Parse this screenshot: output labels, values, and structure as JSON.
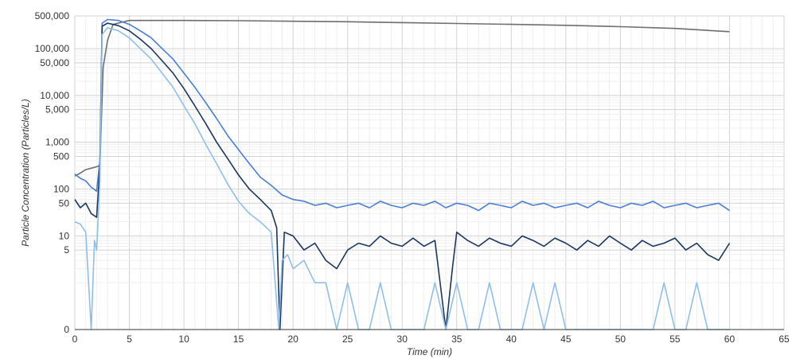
{
  "chart_data": {
    "type": "line",
    "xlabel": "Time (min)",
    "ylabel": "Particle Concentration (Particles/L)",
    "xlim": [
      0,
      65
    ],
    "x_ticks": [
      0,
      5,
      10,
      15,
      20,
      25,
      30,
      35,
      40,
      45,
      50,
      55,
      60,
      65
    ],
    "y_scale": "symlog",
    "y_ticks": [
      0,
      5,
      10,
      50,
      100,
      500,
      1000,
      5000,
      10000,
      50000,
      100000,
      500000
    ],
    "y_tick_labels": [
      "0",
      "5",
      "10",
      "50",
      "100",
      "500",
      "1,000",
      "5,000",
      "10,000",
      "50,000",
      "100,000",
      "500,000"
    ],
    "ylim": [
      0,
      500000
    ],
    "grid": true,
    "legend": "none",
    "series": [
      {
        "color": "#6e6e6e",
        "points": [
          [
            0,
            190
          ],
          [
            0.5,
            220
          ],
          [
            1,
            260
          ],
          [
            1.5,
            280
          ],
          [
            2,
            300
          ],
          [
            2.3,
            320
          ],
          [
            2.6,
            40000
          ],
          [
            3,
            150000
          ],
          [
            3.5,
            330000
          ],
          [
            5,
            400000
          ],
          [
            10,
            400000
          ],
          [
            15,
            395000
          ],
          [
            20,
            385000
          ],
          [
            25,
            375000
          ],
          [
            30,
            360000
          ],
          [
            35,
            345000
          ],
          [
            40,
            330000
          ],
          [
            45,
            315000
          ],
          [
            50,
            295000
          ],
          [
            55,
            270000
          ],
          [
            60,
            230000
          ]
        ]
      },
      {
        "color": "#4a7fd4",
        "points": [
          [
            0,
            210
          ],
          [
            0.5,
            170
          ],
          [
            1,
            150
          ],
          [
            1.5,
            110
          ],
          [
            2,
            90
          ],
          [
            2.3,
            400
          ],
          [
            2.5,
            350000
          ],
          [
            3,
            420000
          ],
          [
            4,
            400000
          ],
          [
            5,
            330000
          ],
          [
            6,
            240000
          ],
          [
            7,
            170000
          ],
          [
            8,
            100000
          ],
          [
            9,
            60000
          ],
          [
            10,
            30000
          ],
          [
            11,
            15000
          ],
          [
            12,
            7000
          ],
          [
            13,
            3200
          ],
          [
            14,
            1400
          ],
          [
            15,
            700
          ],
          [
            16,
            350
          ],
          [
            17,
            180
          ],
          [
            18,
            120
          ],
          [
            19,
            75
          ],
          [
            20,
            60
          ],
          [
            21,
            55
          ],
          [
            22,
            45
          ],
          [
            23,
            50
          ],
          [
            24,
            40
          ],
          [
            25,
            45
          ],
          [
            26,
            50
          ],
          [
            27,
            40
          ],
          [
            28,
            55
          ],
          [
            29,
            45
          ],
          [
            30,
            40
          ],
          [
            31,
            50
          ],
          [
            32,
            45
          ],
          [
            33,
            55
          ],
          [
            34,
            40
          ],
          [
            35,
            50
          ],
          [
            36,
            45
          ],
          [
            37,
            35
          ],
          [
            38,
            50
          ],
          [
            39,
            45
          ],
          [
            40,
            40
          ],
          [
            41,
            55
          ],
          [
            42,
            45
          ],
          [
            43,
            50
          ],
          [
            44,
            40
          ],
          [
            45,
            45
          ],
          [
            46,
            50
          ],
          [
            47,
            40
          ],
          [
            48,
            55
          ],
          [
            49,
            45
          ],
          [
            50,
            40
          ],
          [
            51,
            50
          ],
          [
            52,
            45
          ],
          [
            53,
            55
          ],
          [
            54,
            40
          ],
          [
            55,
            45
          ],
          [
            56,
            50
          ],
          [
            57,
            40
          ],
          [
            58,
            45
          ],
          [
            59,
            50
          ],
          [
            60,
            35
          ]
        ]
      },
      {
        "color": "#1c355e",
        "points": [
          [
            0,
            60
          ],
          [
            0.5,
            40
          ],
          [
            1,
            50
          ],
          [
            1.5,
            30
          ],
          [
            2,
            25
          ],
          [
            2.3,
            300
          ],
          [
            2.5,
            300000
          ],
          [
            3,
            350000
          ],
          [
            4,
            310000
          ],
          [
            5,
            240000
          ],
          [
            6,
            160000
          ],
          [
            7,
            100000
          ],
          [
            8,
            55000
          ],
          [
            9,
            30000
          ],
          [
            10,
            14000
          ],
          [
            11,
            6000
          ],
          [
            12,
            2500
          ],
          [
            13,
            1000
          ],
          [
            14,
            450
          ],
          [
            15,
            200
          ],
          [
            16,
            100
          ],
          [
            17,
            60
          ],
          [
            18,
            35
          ],
          [
            18.5,
            15
          ],
          [
            18.8,
            0
          ],
          [
            19.2,
            12
          ],
          [
            20,
            10
          ],
          [
            21,
            5
          ],
          [
            22,
            7
          ],
          [
            23,
            3
          ],
          [
            24,
            2
          ],
          [
            25,
            5
          ],
          [
            26,
            7
          ],
          [
            27,
            6
          ],
          [
            28,
            10
          ],
          [
            29,
            7
          ],
          [
            30,
            6
          ],
          [
            31,
            9
          ],
          [
            32,
            6
          ],
          [
            33,
            8
          ],
          [
            34,
            0
          ],
          [
            34.6,
            2
          ],
          [
            35,
            12
          ],
          [
            36,
            8
          ],
          [
            37,
            6
          ],
          [
            38,
            9
          ],
          [
            39,
            7
          ],
          [
            40,
            6
          ],
          [
            41,
            10
          ],
          [
            42,
            8
          ],
          [
            43,
            6
          ],
          [
            44,
            9
          ],
          [
            45,
            7
          ],
          [
            46,
            5
          ],
          [
            47,
            8
          ],
          [
            48,
            6
          ],
          [
            49,
            10
          ],
          [
            50,
            7
          ],
          [
            51,
            5
          ],
          [
            52,
            8
          ],
          [
            53,
            6
          ],
          [
            54,
            7
          ],
          [
            55,
            9
          ],
          [
            56,
            5
          ],
          [
            57,
            7
          ],
          [
            58,
            4
          ],
          [
            59,
            3
          ],
          [
            60,
            7
          ]
        ]
      },
      {
        "color": "#8fbfe8",
        "points": [
          [
            0,
            20
          ],
          [
            0.5,
            18
          ],
          [
            1,
            12
          ],
          [
            1.5,
            0
          ],
          [
            1.8,
            8
          ],
          [
            2,
            5
          ],
          [
            2.3,
            150
          ],
          [
            2.5,
            200000
          ],
          [
            3,
            280000
          ],
          [
            4,
            240000
          ],
          [
            5,
            170000
          ],
          [
            6,
            100000
          ],
          [
            7,
            60000
          ],
          [
            8,
            30000
          ],
          [
            9,
            15000
          ],
          [
            10,
            6000
          ],
          [
            11,
            2500
          ],
          [
            12,
            900
          ],
          [
            13,
            350
          ],
          [
            14,
            130
          ],
          [
            15,
            55
          ],
          [
            16,
            30
          ],
          [
            17,
            20
          ],
          [
            18,
            12
          ],
          [
            18.7,
            0
          ],
          [
            19,
            3
          ],
          [
            19.5,
            4
          ],
          [
            20,
            2
          ],
          [
            21,
            3
          ],
          [
            22,
            1
          ],
          [
            23,
            1
          ],
          [
            24,
            0
          ],
          [
            25,
            1
          ],
          [
            26,
            0
          ],
          [
            27,
            0
          ],
          [
            28,
            1
          ],
          [
            29,
            0
          ],
          [
            30,
            0
          ],
          [
            31,
            0
          ],
          [
            32,
            0
          ],
          [
            33,
            1
          ],
          [
            34,
            0
          ],
          [
            35,
            1
          ],
          [
            36,
            0
          ],
          [
            37,
            0
          ],
          [
            38,
            1
          ],
          [
            39,
            0
          ],
          [
            40,
            0
          ],
          [
            41,
            0
          ],
          [
            42,
            1
          ],
          [
            43,
            0
          ],
          [
            44,
            1
          ],
          [
            45,
            0
          ],
          [
            46,
            0
          ],
          [
            47,
            0
          ],
          [
            48,
            0
          ],
          [
            49,
            0
          ],
          [
            50,
            0
          ],
          [
            51,
            0
          ],
          [
            52,
            0
          ],
          [
            53,
            0
          ],
          [
            54,
            1
          ],
          [
            55,
            0
          ],
          [
            56,
            0
          ],
          [
            57,
            1
          ],
          [
            58,
            0
          ],
          [
            59,
            0
          ],
          [
            60,
            0
          ]
        ]
      }
    ]
  }
}
